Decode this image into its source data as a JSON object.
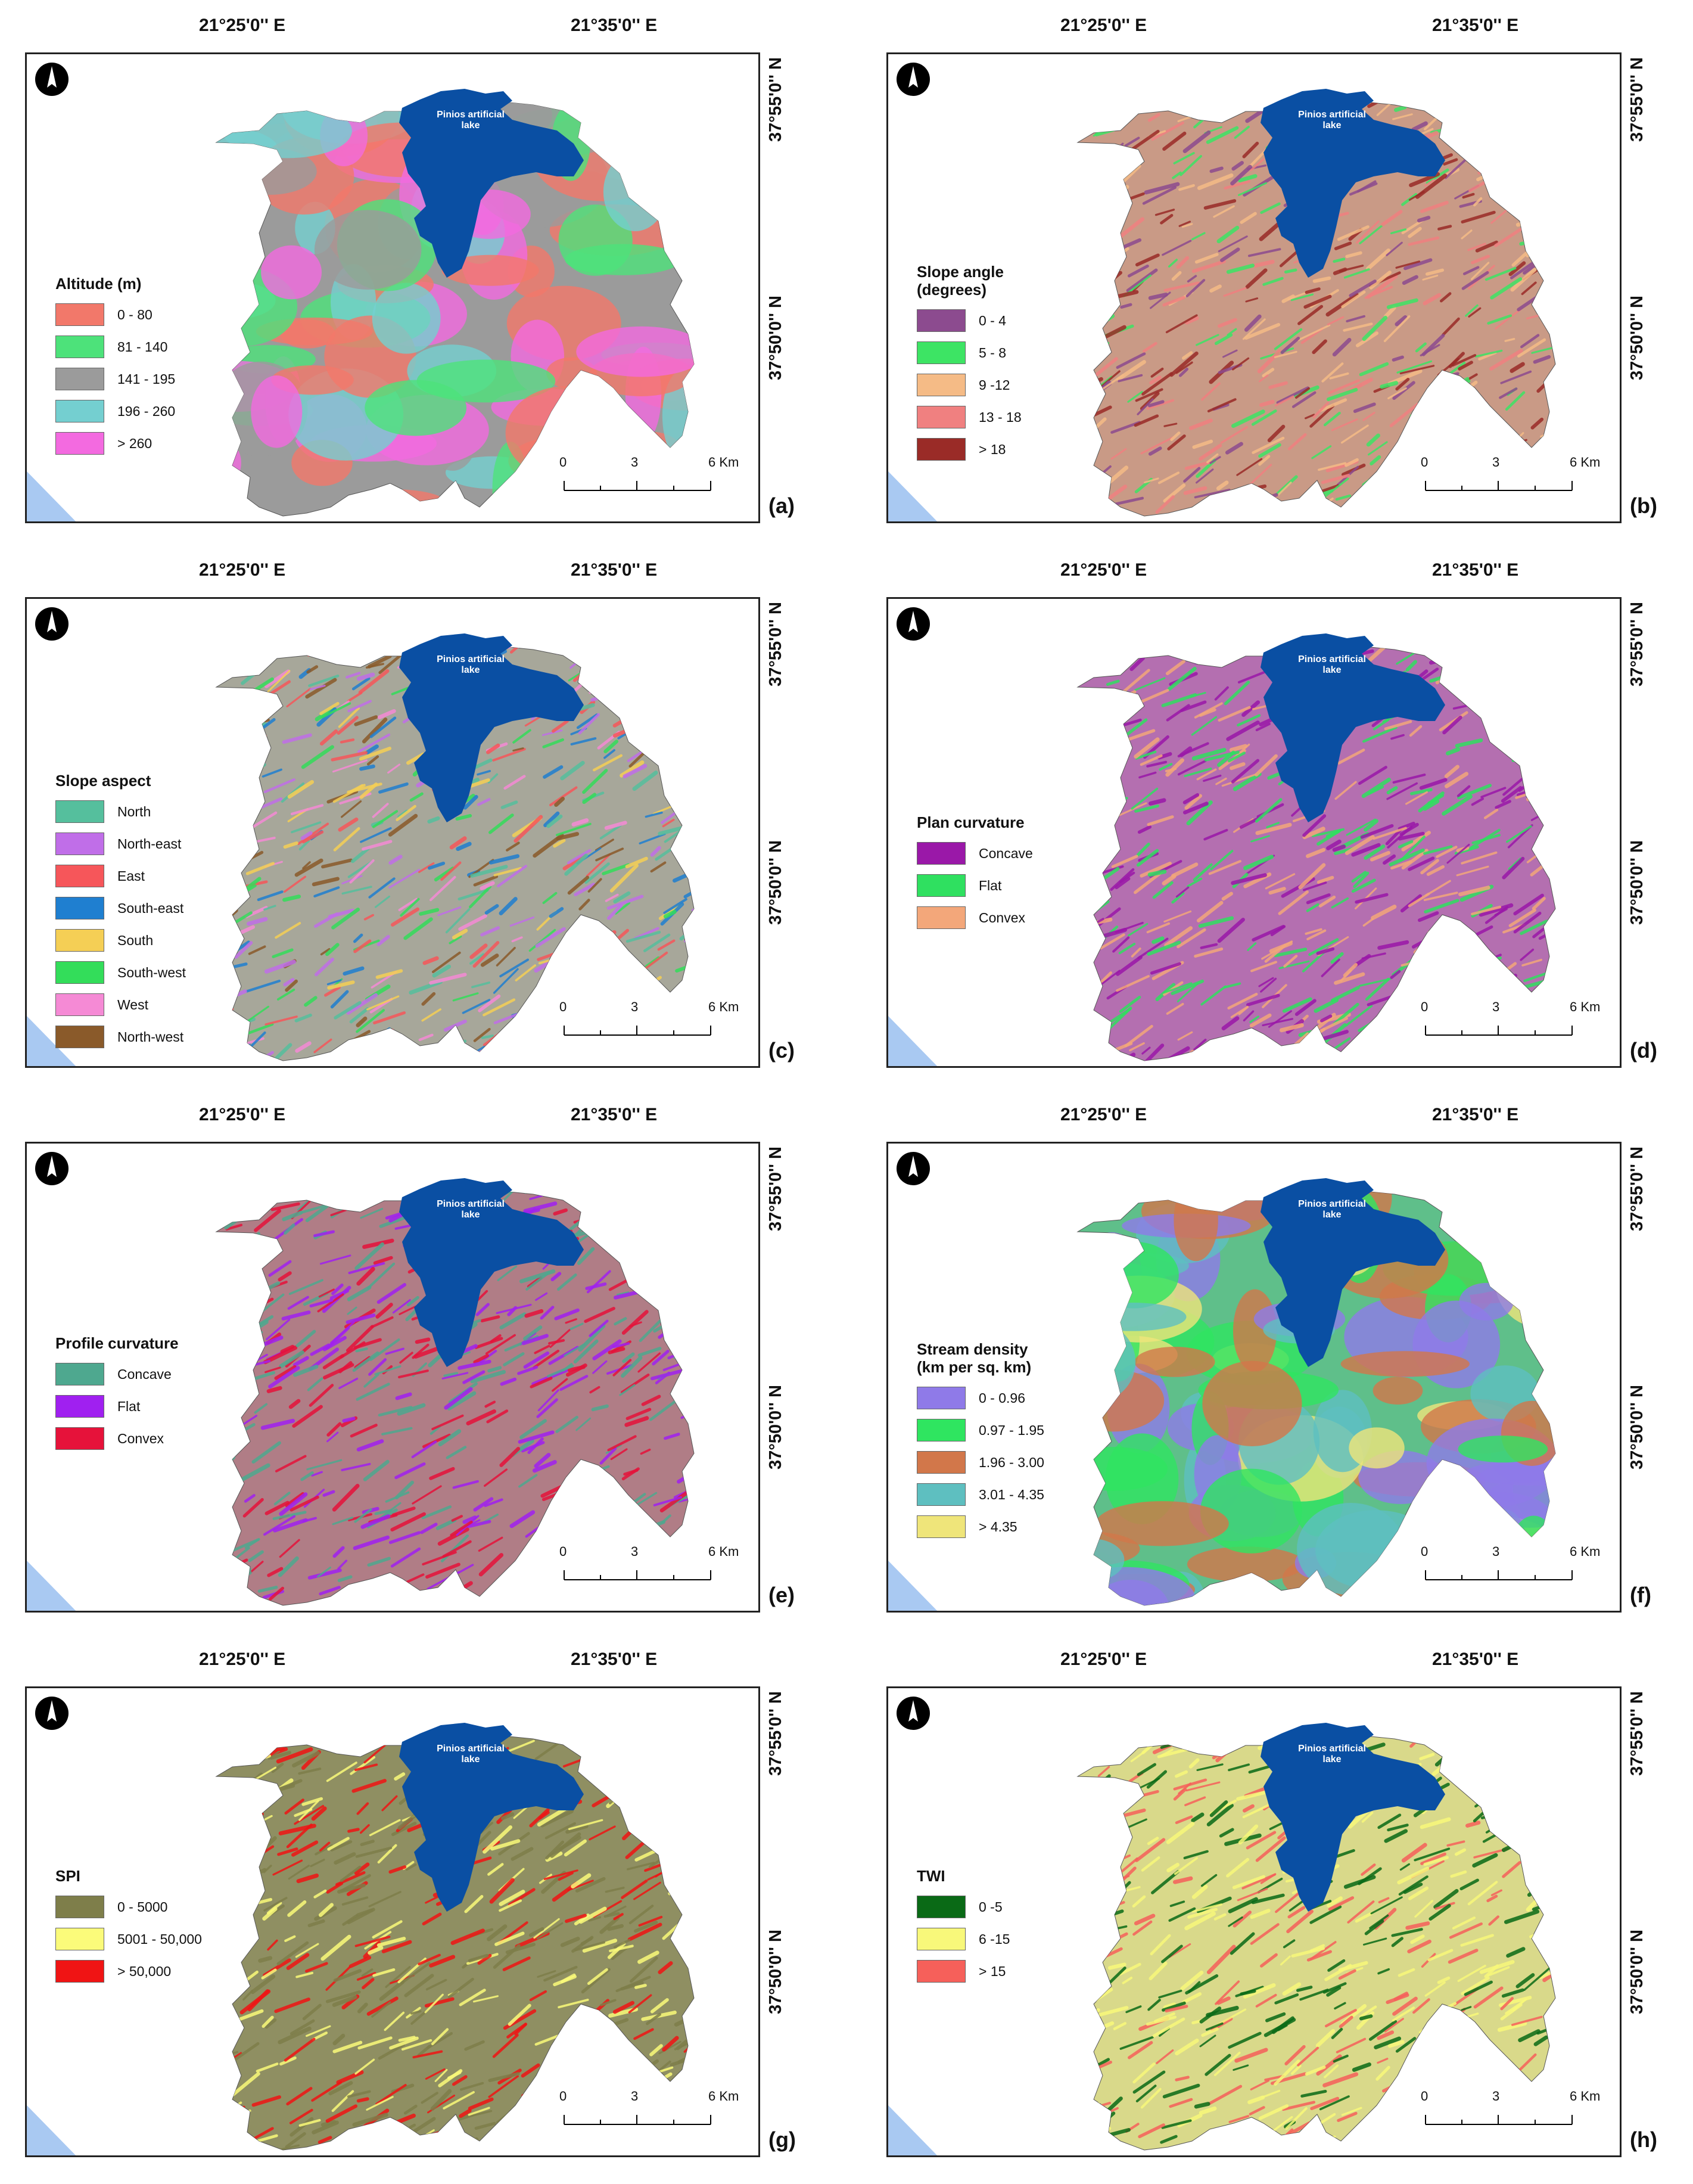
{
  "common": {
    "lon_labels": [
      "21°25'0'' E",
      "21°35'0'' E"
    ],
    "lat_labels": [
      "37°55'0'' N",
      "37°50'0'' N"
    ],
    "lake_label_line1": "Pinios artificial",
    "lake_label_line2": "lake",
    "scale": {
      "ticks": [
        "0",
        "3",
        "6 Km"
      ]
    },
    "lake_color": "#0a4fa3",
    "sea_color": "#a9c9f2"
  },
  "panels": [
    {
      "id": "a",
      "label": "(a)",
      "legend_title": [
        "Altitude (m)"
      ],
      "terrain_color": "#9b9b9b",
      "legend_items": [
        {
          "label": "0 - 80",
          "color": "#f2786a"
        },
        {
          "label": "81 - 140",
          "color": "#4de27a"
        },
        {
          "label": "141 - 195",
          "color": "#9b9b9b"
        },
        {
          "label": "196 - 260",
          "color": "#74cfd0"
        },
        {
          "label": "> 260",
          "color": "#f36ae0"
        }
      ]
    },
    {
      "id": "b",
      "label": "(b)",
      "legend_title": [
        "Slope angle",
        "(degrees)"
      ],
      "terrain_color": "#c99a86",
      "legend_items": [
        {
          "label": "0 - 4",
          "color": "#8c4b8f"
        },
        {
          "label": "5 - 8",
          "color": "#3de464"
        },
        {
          "label": "9 -12",
          "color": "#f5bb86"
        },
        {
          "label": "13 - 18",
          "color": "#f08080"
        },
        {
          "label": "> 18",
          "color": "#9a2b27"
        }
      ]
    },
    {
      "id": "c",
      "label": "(c)",
      "legend_title": [
        "Slope aspect"
      ],
      "terrain_color": "#a7a79a",
      "legend_items": [
        {
          "label": "North",
          "color": "#55bf9d"
        },
        {
          "label": "North-east",
          "color": "#c06ee8"
        },
        {
          "label": "East",
          "color": "#f6565a"
        },
        {
          "label": "South-east",
          "color": "#1f7fd0"
        },
        {
          "label": "South",
          "color": "#f5cf55"
        },
        {
          "label": "South-west",
          "color": "#33dd5a"
        },
        {
          "label": "West",
          "color": "#f58ad5"
        },
        {
          "label": "North-west",
          "color": "#8a5a2a"
        }
      ]
    },
    {
      "id": "d",
      "label": "(d)",
      "legend_title": [
        "Plan curvature"
      ],
      "terrain_color": "#b46fb0",
      "legend_items": [
        {
          "label": "Concave",
          "color": "#9a18a8"
        },
        {
          "label": "Flat",
          "color": "#2fe060"
        },
        {
          "label": "Convex",
          "color": "#f3a77a"
        }
      ]
    },
    {
      "id": "e",
      "label": "(e)",
      "legend_title": [
        "Profile curvature"
      ],
      "terrain_color": "#b07d86",
      "legend_items": [
        {
          "label": "Concave",
          "color": "#4ea88f"
        },
        {
          "label": "Flat",
          "color": "#a020f0"
        },
        {
          "label": "Convex",
          "color": "#e6123a"
        }
      ]
    },
    {
      "id": "f",
      "label": "(f)",
      "legend_title": [
        "Stream density",
        "(km per sq. km)"
      ],
      "terrain_color": "#5fbf8a",
      "legend_items": [
        {
          "label": "0 - 0.96",
          "color": "#8f7ae8"
        },
        {
          "label": "0.97 - 1.95",
          "color": "#2fe560"
        },
        {
          "label": "1.96 - 3.00",
          "color": "#d2774a"
        },
        {
          "label": "3.01 - 4.35",
          "color": "#5ebfc0"
        },
        {
          "label": "> 4.35",
          "color": "#efe57a"
        }
      ]
    },
    {
      "id": "g",
      "label": "(g)",
      "legend_title": [
        "SPI"
      ],
      "terrain_color": "#8f8f62",
      "legend_items": [
        {
          "label": "0 - 5000",
          "color": "#7e7e4a"
        },
        {
          "label": "5001 - 50,000",
          "color": "#fbfb7a"
        },
        {
          "label": "> 50,000",
          "color": "#f01414"
        }
      ]
    },
    {
      "id": "h",
      "label": "(h)",
      "legend_title": [
        "TWI"
      ],
      "terrain_color": "#d9d98a",
      "legend_items": [
        {
          "label": "0 -5",
          "color": "#0a6a16"
        },
        {
          "label": "6 -15",
          "color": "#f8f87a"
        },
        {
          "label": "> 15",
          "color": "#f6605a"
        }
      ]
    }
  ]
}
